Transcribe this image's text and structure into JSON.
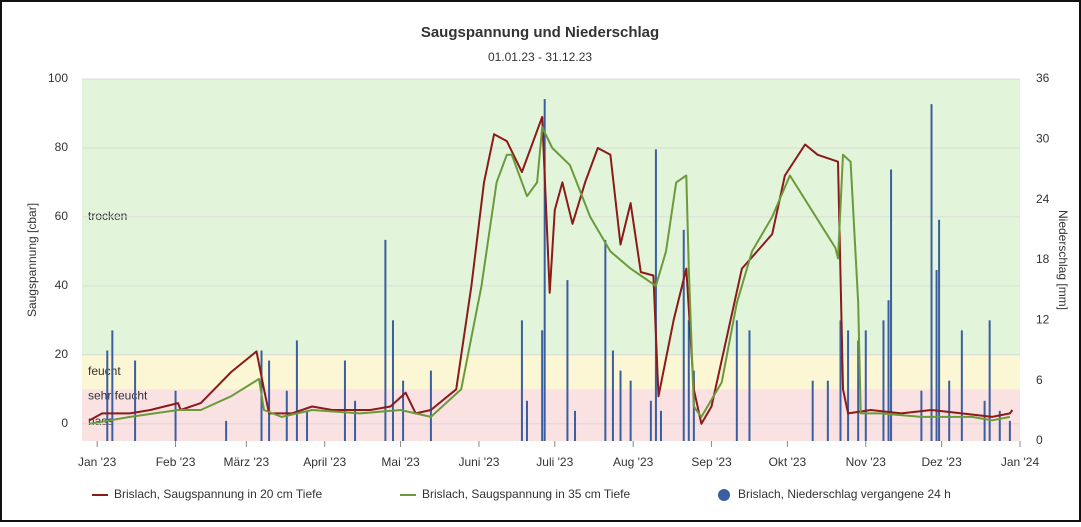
{
  "chart_data": {
    "type": "line",
    "title": "Saugspannung und Niederschlag",
    "subtitle": "01.01.23 - 31.12.23",
    "ylabel": "Saugspannung [cbar]",
    "y2label": "Niederschlag [mm]",
    "xlim": [
      -6,
      365
    ],
    "xticks": [
      {
        "value": 0,
        "label": "Jan '23"
      },
      {
        "value": 31,
        "label": "Feb '23"
      },
      {
        "value": 59,
        "label": "März '23"
      },
      {
        "value": 90,
        "label": "April '23"
      },
      {
        "value": 120,
        "label": "Mai '23"
      },
      {
        "value": 151,
        "label": "Juni '23"
      },
      {
        "value": 181,
        "label": "Juli '23"
      },
      {
        "value": 212,
        "label": "Aug '23"
      },
      {
        "value": 243,
        "label": "Sep '23"
      },
      {
        "value": 273,
        "label": "Okt '23"
      },
      {
        "value": 304,
        "label": "Nov '23"
      },
      {
        "value": 334,
        "label": "Dez '23"
      },
      {
        "value": 365,
        "label": "Jan '24"
      }
    ],
    "ylim": [
      -5,
      100
    ],
    "yticks": [
      0,
      20,
      40,
      60,
      80,
      100
    ],
    "y2lim": [
      0,
      36
    ],
    "y2ticks": [
      0,
      6,
      12,
      18,
      24,
      30,
      36
    ],
    "grid": true,
    "bands": [
      {
        "label": "trocken",
        "from": 20,
        "to": 100,
        "color": "#e2f5da"
      },
      {
        "label": "feucht",
        "from": 10,
        "to": 20,
        "color": "#fbf6d3"
      },
      {
        "label": "sehr feucht",
        "from": 6,
        "to": 10,
        "color": "#fae2e2"
      },
      {
        "label": "nass",
        "from": -5,
        "to": 6,
        "color": "#fae2e2"
      }
    ],
    "series": [
      {
        "name": "Brislach, Saugspannung in 20 cm Tiefe",
        "color": "#8b1a1a",
        "kind": "line",
        "x": [
          -3,
          2,
          13,
          21,
          32,
          33,
          41,
          53,
          63,
          66,
          68,
          77,
          85,
          93,
          108,
          116,
          122,
          126,
          132,
          142,
          148,
          153,
          157,
          162,
          168,
          176,
          179,
          181,
          184,
          188,
          193,
          198,
          203,
          207,
          211,
          215,
          220,
          222,
          228,
          233,
          236,
          239,
          243,
          249,
          255,
          261,
          267,
          272,
          280,
          285,
          293,
          295,
          297,
          306,
          318,
          330,
          342,
          354,
          361,
          362
        ],
        "values": [
          1,
          3,
          3,
          4,
          6,
          4,
          6,
          15,
          21,
          10,
          3,
          3,
          5,
          4,
          4,
          5,
          9,
          3,
          4,
          10,
          40,
          70,
          84,
          82,
          73,
          89,
          38,
          62,
          70,
          58,
          70,
          80,
          78,
          52,
          64,
          44,
          43,
          8,
          30,
          45,
          10,
          0,
          5,
          25,
          45,
          50,
          55,
          72,
          81,
          78,
          76,
          10,
          3,
          4,
          3,
          4,
          3,
          2,
          3,
          4
        ]
      },
      {
        "name": "Brislach, Saugspannung in 35 cm Tiefe",
        "color": "#6b9a3a",
        "kind": "line",
        "x": [
          -3,
          13,
          32,
          41,
          53,
          64,
          66,
          73,
          85,
          104,
          120,
          132,
          144,
          152,
          158,
          162,
          164,
          170,
          174,
          176,
          180,
          187,
          195,
          203,
          211,
          221,
          225,
          229,
          233,
          234,
          236,
          239,
          247,
          253,
          259,
          267,
          274,
          286,
          292,
          293,
          295,
          298,
          301,
          302,
          310,
          326,
          346,
          354,
          361
        ],
        "values": [
          0,
          2,
          4,
          4,
          8,
          13,
          4,
          2,
          4,
          3,
          4,
          2,
          10,
          40,
          70,
          78,
          78,
          66,
          70,
          86,
          80,
          75,
          60,
          50,
          45,
          40,
          50,
          70,
          72,
          45,
          5,
          2,
          12,
          35,
          50,
          60,
          72,
          58,
          51,
          48,
          78,
          76,
          35,
          3,
          3,
          2,
          2,
          1,
          2
        ]
      },
      {
        "name": "Brislach, Niederschlag vergangene 24 h",
        "color": "#3a5fa0",
        "kind": "bar",
        "axis": "y2",
        "x": [
          4,
          6,
          15,
          31,
          51,
          65,
          68,
          75,
          79,
          83,
          98,
          102,
          114,
          117,
          121,
          132,
          168,
          170,
          176,
          177,
          186,
          189,
          201,
          204,
          207,
          211,
          219,
          221,
          223,
          232,
          234,
          236,
          253,
          258,
          283,
          289,
          294,
          297,
          301,
          304,
          311,
          313,
          314,
          326,
          330,
          332,
          333,
          337,
          342,
          351,
          353,
          357,
          361
        ],
        "values": [
          9,
          11,
          8,
          5,
          2,
          9,
          8,
          5,
          10,
          3,
          8,
          4,
          20,
          12,
          6,
          7,
          12,
          4,
          11,
          34,
          16,
          3,
          20,
          9,
          7,
          6,
          4,
          29,
          3,
          21,
          12,
          7,
          12,
          11,
          6,
          6,
          12,
          11,
          10,
          11,
          12,
          14,
          27,
          5,
          33.5,
          17,
          22,
          6,
          11,
          4,
          12,
          3,
          2
        ]
      }
    ]
  }
}
